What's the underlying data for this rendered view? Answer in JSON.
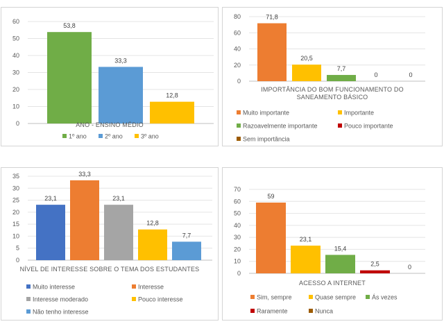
{
  "chart_data": [
    {
      "type": "bar",
      "title": "ANO - ENSINO MÉDIO",
      "ylim": [
        0,
        60
      ],
      "yticks": [
        0,
        10,
        20,
        30,
        40,
        50,
        60
      ],
      "grid": true,
      "legend_position": "bottom",
      "series": [
        {
          "name": "1º ano",
          "value": 53.8,
          "label": "53,8",
          "color": "#70ad47"
        },
        {
          "name": "2º ano",
          "value": 33.3,
          "label": "33,3",
          "color": "#5b9bd5"
        },
        {
          "name": "3º ano",
          "value": 12.8,
          "label": "12,8",
          "color": "#ffc000"
        }
      ]
    },
    {
      "type": "bar",
      "title": "IMPORTÂNCIA DO BOM FUNCIONAMENTO DO SANEAMENTO BÁSICO",
      "title_lines": [
        "IMPORTÂNCIA DO BOM FUNCIONAMENTO DO",
        "SANEAMENTO BÁSICO"
      ],
      "ylim": [
        0,
        80
      ],
      "yticks": [
        0,
        20,
        40,
        60,
        80
      ],
      "grid": true,
      "legend_position": "bottom",
      "series": [
        {
          "name": "Muito importante",
          "value": 71.8,
          "label": "71,8",
          "color": "#ed7d31"
        },
        {
          "name": "Importante",
          "value": 20.5,
          "label": "20,5",
          "color": "#ffc000"
        },
        {
          "name": "Razoavelmente importante",
          "value": 7.7,
          "label": "7,7",
          "color": "#70ad47"
        },
        {
          "name": "Pouco importante",
          "value": 0,
          "label": "0",
          "color": "#c00000"
        },
        {
          "name": "Sem importância",
          "value": 0,
          "label": "0",
          "color": "#9c5b00"
        }
      ]
    },
    {
      "type": "bar",
      "title": "NÍVEL DE INTERESSE SOBRE O TEMA DOS ESTUDANTES",
      "ylim": [
        0,
        35
      ],
      "yticks": [
        0,
        5,
        10,
        15,
        20,
        25,
        30,
        35
      ],
      "grid": true,
      "legend_position": "bottom",
      "series": [
        {
          "name": "Muito interesse",
          "value": 23.1,
          "label": "23,1",
          "color": "#4472c4"
        },
        {
          "name": "Interesse",
          "value": 33.3,
          "label": "33,3",
          "color": "#ed7d31"
        },
        {
          "name": "Interesse moderado",
          "value": 23.1,
          "label": "23,1",
          "color": "#a5a5a5"
        },
        {
          "name": "Pouco interesse",
          "value": 12.8,
          "label": "12,8",
          "color": "#ffc000"
        },
        {
          "name": "Não tenho interesse",
          "value": 7.7,
          "label": "7,7",
          "color": "#5b9bd5"
        }
      ]
    },
    {
      "type": "bar",
      "title": "ACESSO A INTERNET",
      "ylim": [
        0,
        70
      ],
      "yticks": [
        0,
        10,
        20,
        30,
        40,
        50,
        60,
        70
      ],
      "grid": true,
      "legend_position": "bottom",
      "series": [
        {
          "name": "Sim, sempre",
          "value": 59,
          "label": "59",
          "color": "#ed7d31"
        },
        {
          "name": "Quase sempre",
          "value": 23.1,
          "label": "23,1",
          "color": "#ffc000"
        },
        {
          "name": "Ás vezes",
          "value": 15.4,
          "label": "15,4",
          "color": "#70ad47"
        },
        {
          "name": "Raramente",
          "value": 2.5,
          "label": "2,5",
          "color": "#c00000"
        },
        {
          "name": "Nunca",
          "value": 0,
          "label": "0",
          "color": "#9c5b00"
        }
      ]
    }
  ]
}
